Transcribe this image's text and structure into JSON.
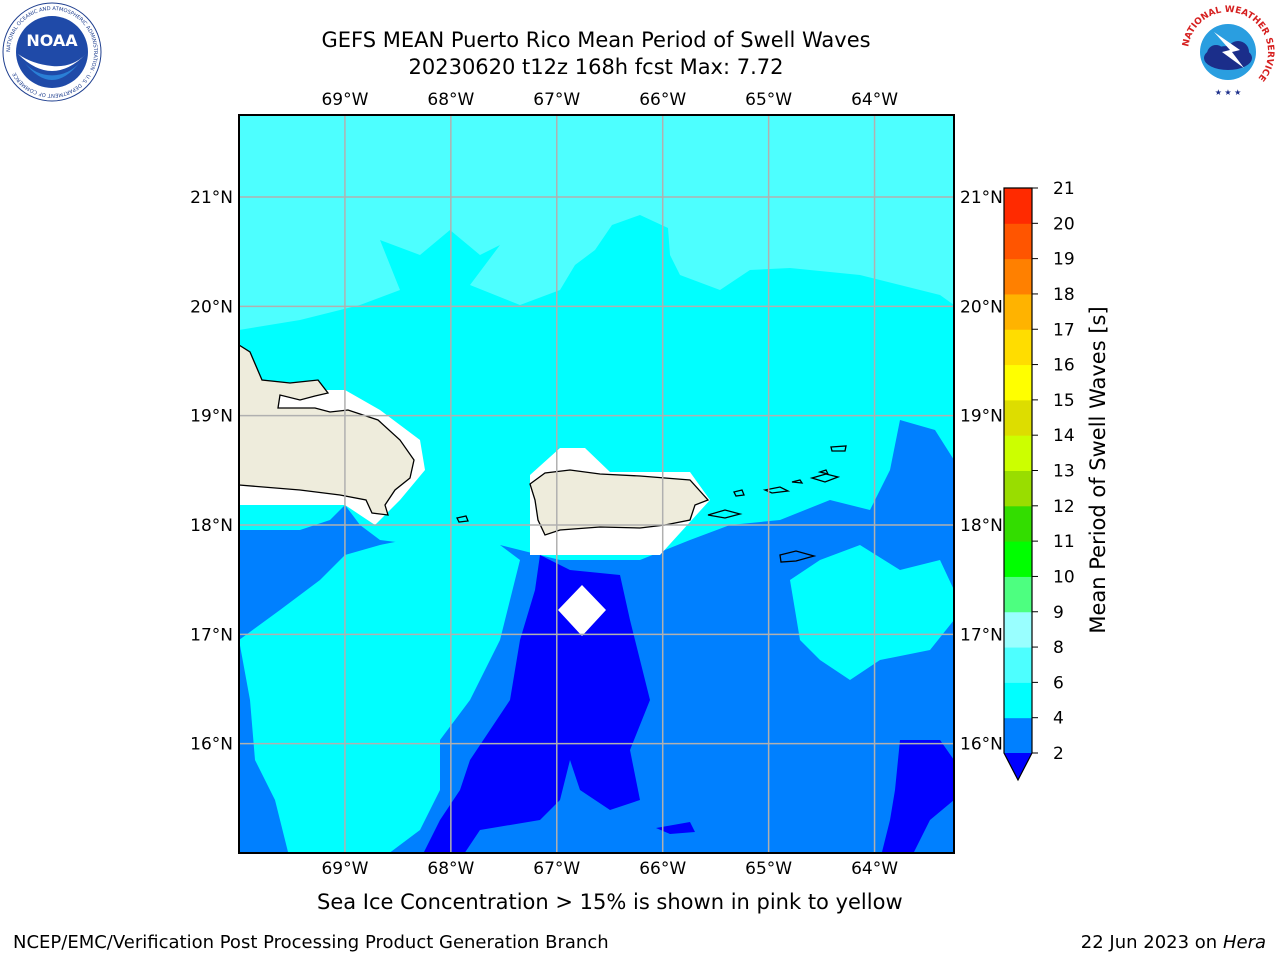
{
  "title": {
    "line1": "GEFS MEAN Puerto Rico Mean Period of Swell Waves",
    "line2": "20230620 t12z 168h fcst   Max: 7.72"
  },
  "map": {
    "lon_ticks": [
      "69°W",
      "68°W",
      "67°W",
      "66°W",
      "65°W",
      "64°W"
    ],
    "lat_ticks": [
      "21°N",
      "20°N",
      "19°N",
      "18°N",
      "17°N",
      "16°N"
    ],
    "lon_values": [
      -69,
      -68,
      -67,
      -66,
      -65,
      -64
    ],
    "lat_values": [
      21,
      20,
      19,
      18,
      17,
      16
    ],
    "lon_range": [
      -70.0,
      -63.25
    ],
    "lat_range": [
      15.0,
      21.75
    ],
    "ocean_colors": {
      "light_cyan": "#4dffff",
      "cyan": "#00ffff",
      "blue": "#0080ff",
      "deep_blue": "#0000ff",
      "land": "#eeecdc"
    }
  },
  "colorbar": {
    "title": "Mean Period of Swell Waves [s]",
    "levels": [
      "2",
      "4",
      "6",
      "8",
      "9",
      "10",
      "11",
      "12",
      "13",
      "14",
      "15",
      "16",
      "17",
      "18",
      "19",
      "20",
      "21"
    ],
    "colors": [
      "#0080ff",
      "#00ffff",
      "#4dffff",
      "#99ffff",
      "#4dff80",
      "#00ff00",
      "#33dd00",
      "#99dd00",
      "#ccff00",
      "#dddd00",
      "#ffff00",
      "#ffdd00",
      "#ffb300",
      "#ff8000",
      "#ff5500",
      "#ff2a00",
      "#ff0000"
    ],
    "under_color": "#0000ff"
  },
  "notes": {
    "sea_ice": "Sea Ice Concentration > 15% is shown in pink to yellow",
    "footer_left": "NCEP/EMC/Verification Post Processing Product Generation Branch",
    "footer_date": "22 Jun 2023 on",
    "footer_host": "Hera"
  },
  "logos": {
    "noaa_text": "NOAA",
    "noaa_ring_text": "NATIONAL OCEANIC AND ATMOSPHERIC ADMINISTRATION · U.S. DEPARTMENT OF COMMERCE",
    "nws_ring_text": "NATIONAL WEATHER SERVICE"
  }
}
